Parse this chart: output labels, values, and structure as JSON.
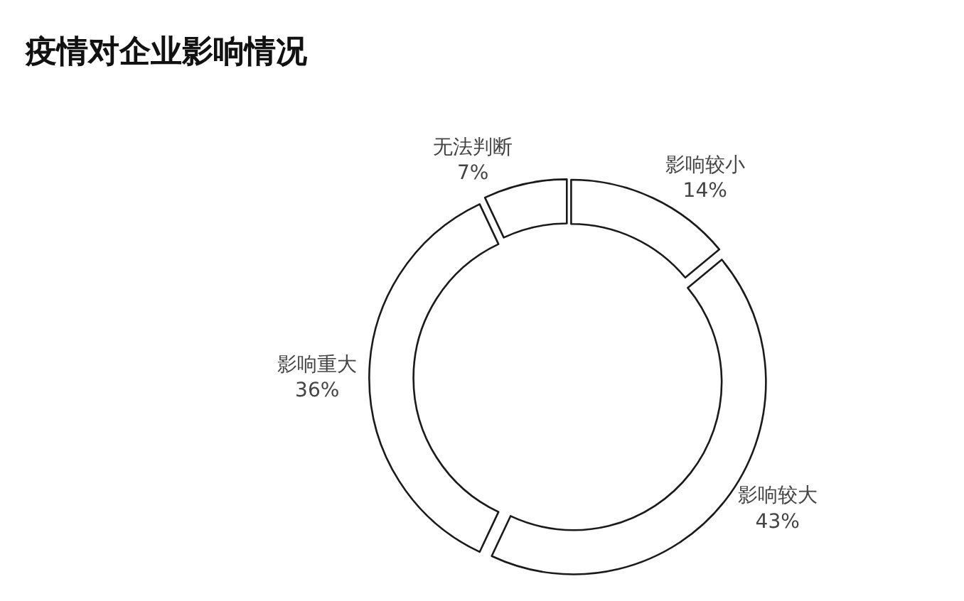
{
  "chart_data": {
    "type": "donut",
    "title": "疫情对企业影响情况",
    "categories": [
      "影响较小",
      "影响较大",
      "影响重大",
      "无法判断"
    ],
    "values": [
      14,
      43,
      36,
      7
    ],
    "value_labels": [
      "14%",
      "43%",
      "36%",
      "7%"
    ],
    "colors": [
      "#ffffff",
      "#ffffff",
      "#ffffff",
      "#ffffff"
    ],
    "legend": false
  }
}
